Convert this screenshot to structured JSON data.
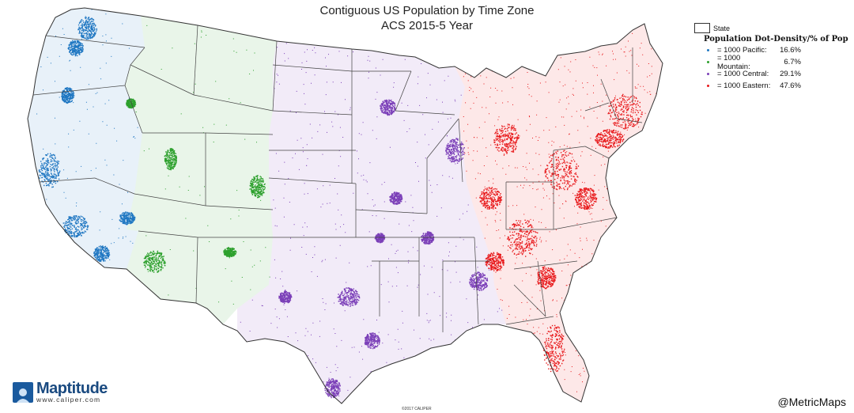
{
  "title_line1": "Contiguous US Population by Time Zone",
  "title_line2": "ACS 2015-5 Year",
  "legend": {
    "state_label": "State",
    "heading": "Population Dot-Density/% of Pop",
    "items": [
      {
        "label": "= 1000 Pacific:",
        "pct": "16.6%",
        "color": "#1f77c2",
        "zone": "pacific"
      },
      {
        "label": "= 1000 Mountain:",
        "pct": "6.7%",
        "color": "#2ca02c",
        "zone": "mountain"
      },
      {
        "label": "= 1000 Central:",
        "pct": "29.1%",
        "color": "#7b3fb8",
        "zone": "central"
      },
      {
        "label": "= 1000 Eastern:",
        "pct": "47.6%",
        "color": "#e8191b",
        "zone": "eastern"
      }
    ]
  },
  "brand": {
    "name": "Maptitude",
    "url": "www.caliper.com"
  },
  "handle": "@MetricMaps",
  "copyright": "©2017 CALIPER"
}
